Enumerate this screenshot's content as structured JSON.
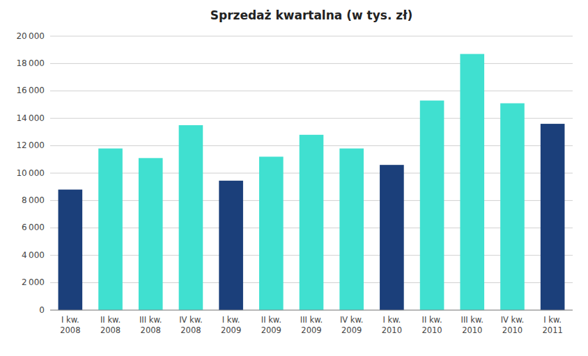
{
  "chart_data": {
    "type": "bar",
    "title": "Sprzedaż kwartalna (w tys. zł)",
    "categories": [
      "I kw.\n2008",
      "II kw.\n2008",
      "III kw.\n2008",
      "IV kw.\n2008",
      "I kw.\n2009",
      "II kw.\n2009",
      "III kw.\n2009",
      "IV kw.\n2009",
      "I kw.\n2010",
      "II kw.\n2010",
      "III kw.\n2010",
      "IV kw.\n2010",
      "I kw.\n2011"
    ],
    "values": [
      8800,
      11800,
      11100,
      13500,
      9450,
      11200,
      12800,
      11800,
      10600,
      15300,
      18700,
      15100,
      13600
    ],
    "colors": [
      "#1B3F7A",
      "#40E0D0",
      "#40E0D0",
      "#40E0D0",
      "#1B3F7A",
      "#40E0D0",
      "#40E0D0",
      "#40E0D0",
      "#1B3F7A",
      "#40E0D0",
      "#40E0D0",
      "#40E0D0",
      "#1B3F7A"
    ],
    "ylim": [
      0,
      20000
    ],
    "yticks": [
      0,
      {
        "value": 2000,
        "label": "2 000"
      },
      {
        "value": 4000,
        "label": "4 000"
      },
      {
        "value": 6000,
        "label": "6 000"
      },
      {
        "value": 8000,
        "label": "8 000"
      },
      {
        "value": 10000,
        "label": "10 000"
      },
      {
        "value": 12000,
        "label": "12 000"
      },
      {
        "value": 14000,
        "label": "14 000"
      },
      {
        "value": 16000,
        "label": "16 000"
      },
      {
        "value": 18000,
        "label": "18 000"
      },
      {
        "value": 20000,
        "label": "20 000"
      }
    ],
    "grid": true
  }
}
